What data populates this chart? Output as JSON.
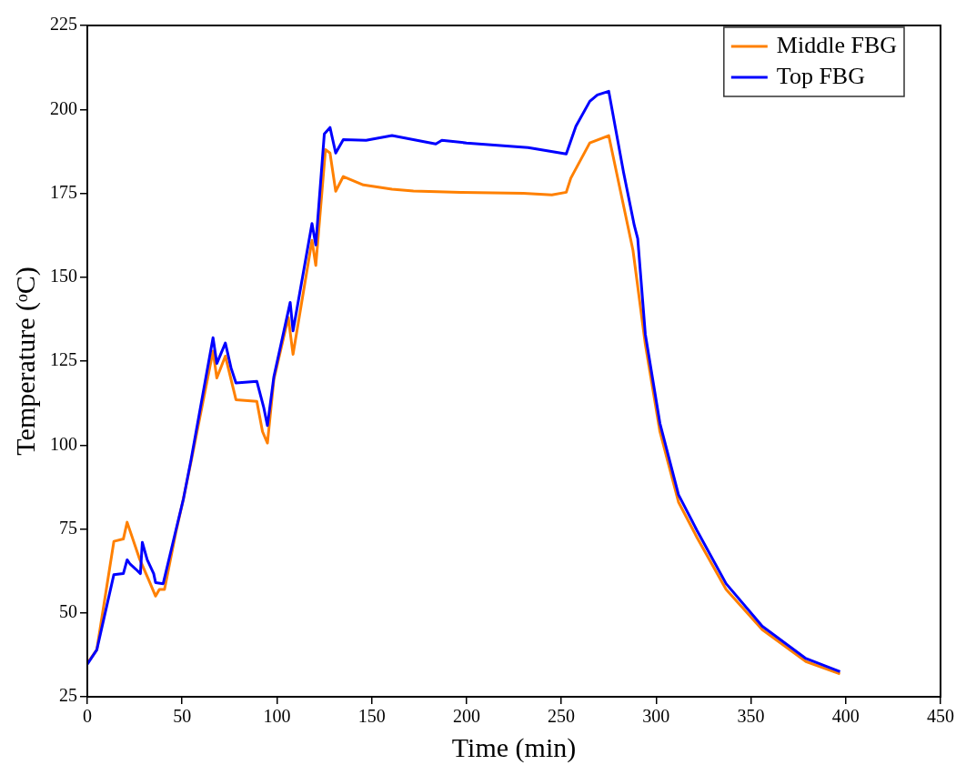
{
  "chart_data": {
    "type": "line",
    "xlabel": "Time (min)",
    "ylabel": "Temperature (ᵒC)",
    "xlim": [
      0,
      450
    ],
    "xticks": [
      0,
      50,
      100,
      150,
      200,
      250,
      300,
      350,
      400,
      450
    ],
    "ylim": [
      25,
      225
    ],
    "yticks": [
      25,
      50,
      75,
      100,
      125,
      150,
      175,
      200,
      225
    ],
    "legend": "top right",
    "line_style": "solid",
    "marker": "none",
    "series": [
      {
        "name": "Middle FBG",
        "color": "#ff8000",
        "x": [
          0,
          5,
          14,
          19,
          21,
          27.6,
          32.6,
          36,
          38,
          40.7,
          46.7,
          50.7,
          54.7,
          66.3,
          68.3,
          72.8,
          78.4,
          89.4,
          92.4,
          95,
          98.4,
          106,
          108.5,
          118.5,
          120.5,
          125.6,
          128,
          131,
          135,
          145.6,
          160.7,
          172,
          197,
          230,
          245,
          252.6,
          255,
          265,
          275,
          287.8,
          294.3,
          302,
          311.8,
          321.5,
          336.9,
          356,
          379,
          397
        ],
        "values": [
          35,
          39,
          71.3,
          72,
          77,
          66,
          59.5,
          55,
          57,
          57,
          74,
          84,
          95,
          128,
          120,
          126.5,
          113.5,
          113,
          104,
          100.6,
          119.6,
          138,
          127,
          161,
          153.5,
          188,
          187,
          175.6,
          180,
          177.5,
          176.2,
          175.7,
          175.3,
          175,
          174.5,
          175.3,
          179.5,
          190,
          192.2,
          158,
          130,
          104,
          83,
          72.5,
          57,
          45,
          35.5,
          31.8
        ]
      },
      {
        "name": "Top FBG",
        "color": "#0000ff",
        "x": [
          0,
          5,
          14,
          19,
          21,
          22.6,
          25.6,
          28,
          29,
          31.6,
          35,
          36,
          40,
          46.7,
          50.7,
          54.7,
          66.3,
          68.3,
          72.8,
          75.8,
          78.4,
          89.4,
          93,
          95,
          98.4,
          107,
          108.5,
          118.5,
          120.5,
          125,
          128,
          131,
          135,
          147,
          160.7,
          183.8,
          187,
          200,
          232.5,
          252.6,
          257.7,
          265,
          269,
          275,
          282.8,
          288.5,
          290.3,
          294.3,
          302,
          311.8,
          321.5,
          336.9,
          356,
          379,
          397
        ],
        "values": [
          34.7,
          39,
          61.4,
          61.7,
          65.8,
          64.5,
          63,
          61.7,
          71,
          65.8,
          61.7,
          59,
          58.7,
          74.6,
          84,
          95.6,
          132,
          124.3,
          130.4,
          123,
          118.5,
          119,
          111.3,
          105.8,
          120.4,
          142.5,
          134,
          166,
          159.6,
          192.7,
          194.6,
          187,
          191,
          190.8,
          192.2,
          189.7,
          190.8,
          190,
          188.6,
          186.7,
          195,
          202.4,
          204.3,
          205.4,
          181.3,
          165.4,
          161.5,
          133,
          106.5,
          85.2,
          74.6,
          58.7,
          46,
          36.4,
          32.5
        ]
      }
    ]
  }
}
